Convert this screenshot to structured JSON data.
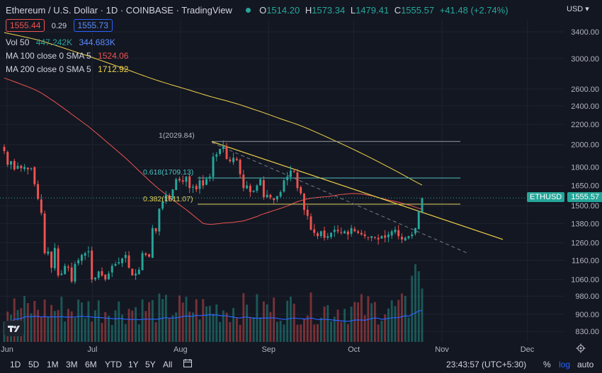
{
  "header": {
    "symbol_title": "Ethereum / U.S. Dollar · 1D · COINBASE · TradingView",
    "ohlc": {
      "o_label": "O",
      "o": "1514.20",
      "h_label": "H",
      "h": "1573.34",
      "l_label": "L",
      "l": "1479.41",
      "c_label": "C",
      "c": "1555.57",
      "change": "+41.48 (+2.74%)"
    },
    "sell_price": "1555.44",
    "spread": "0.29",
    "buy_price": "1555.73",
    "currency": "USD",
    "colors": {
      "up": "#26a69a",
      "down": "#ef5350"
    }
  },
  "indicators": [
    {
      "label": "Vol 50",
      "v1": "447.242K",
      "v2": "344.683K",
      "c1": "#26a69a",
      "c2": "#2962ff"
    },
    {
      "label": "MA 100 close 0 SMA 5",
      "v1": "1524.06",
      "c1": "#ef5350"
    },
    {
      "label": "MA 200 close 0 SMA 5",
      "v1": "1712.92",
      "c1": "#f0d34a"
    }
  ],
  "fib_labels": {
    "top": "1(2029.84)",
    "mid": "0.618(1709.13)",
    "low": "0.382(1511.07)"
  },
  "price_tag": {
    "symbol": "ETHUSD",
    "price": "1555.57"
  },
  "timeframes": [
    "1D",
    "5D",
    "1M",
    "3M",
    "6M",
    "YTD",
    "1Y",
    "5Y",
    "All"
  ],
  "footer": {
    "clock": "23:43:57 (UTC+5:30)",
    "pct": "%",
    "log": "log",
    "auto": "auto"
  },
  "chart_data": {
    "type": "candlestick",
    "scale": "log",
    "ylim": [
      790,
      3600
    ],
    "y_ticks": [
      830,
      900,
      980,
      1060,
      1160,
      1260,
      1380,
      1500,
      1650,
      1800,
      2000,
      2200,
      2400,
      2600,
      3000,
      3400
    ],
    "x_ticks": [
      "Jun",
      "Jul",
      "Aug",
      "Sep",
      "Oct",
      "Nov",
      "Dec"
    ],
    "dates": {
      "start": "2022-06-01",
      "end": "2022-10-26"
    },
    "closes": [
      1940,
      1820,
      1850,
      1780,
      1810,
      1790,
      1800,
      1780,
      1790,
      1660,
      1550,
      1450,
      1200,
      1210,
      1120,
      1230,
      1080,
      1090,
      1130,
      1120,
      1050,
      1140,
      1160,
      1190,
      1200,
      1210,
      1060,
      1070,
      1100,
      1080,
      1060,
      1090,
      1130,
      1140,
      1150,
      1170,
      1190,
      1120,
      1080,
      1090,
      1110,
      1200,
      1190,
      1180,
      1350,
      1330,
      1480,
      1530,
      1580,
      1540,
      1620,
      1700,
      1690,
      1680,
      1720,
      1630,
      1640,
      1620,
      1690,
      1650,
      1700,
      1720,
      1890,
      1910,
      1960,
      1990,
      1870,
      1850,
      1880,
      1860,
      1740,
      1630,
      1650,
      1600,
      1610,
      1650,
      1700,
      1560,
      1580,
      1560,
      1540,
      1570,
      1600,
      1690,
      1720,
      1770,
      1760,
      1630,
      1590,
      1470,
      1430,
      1340,
      1320,
      1300,
      1330,
      1290,
      1300,
      1320,
      1340,
      1330,
      1320,
      1330,
      1310,
      1350,
      1330,
      1320,
      1310,
      1300,
      1290,
      1300,
      1290,
      1280,
      1300,
      1290,
      1310,
      1330,
      1340,
      1300,
      1280,
      1290,
      1300,
      1310,
      1350,
      1460,
      1555
    ],
    "volume_avg": "344.683K",
    "ma100_end": 1524.06,
    "ma200_end": 1712.92,
    "fib_levels": [
      2029.84,
      1709.13,
      1511.07
    ],
    "last_price": 1555.57
  }
}
